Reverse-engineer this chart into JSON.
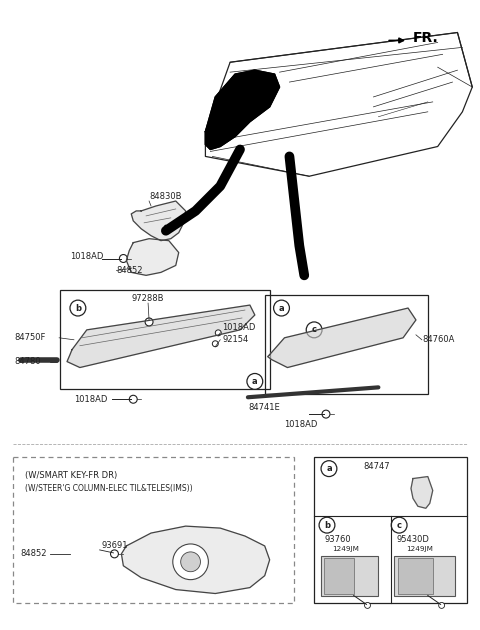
{
  "bg_color": "#ffffff",
  "lc": "#222222",
  "fs": 6.0,
  "fs_tiny": 5.2,
  "fr_label": "FR.",
  "condition_text_line1": "(W/SMART KEY-FR DR)",
  "condition_text_line2": "(W/STEER'G COLUMN-ELEC TIL&TELES(IMS))"
}
